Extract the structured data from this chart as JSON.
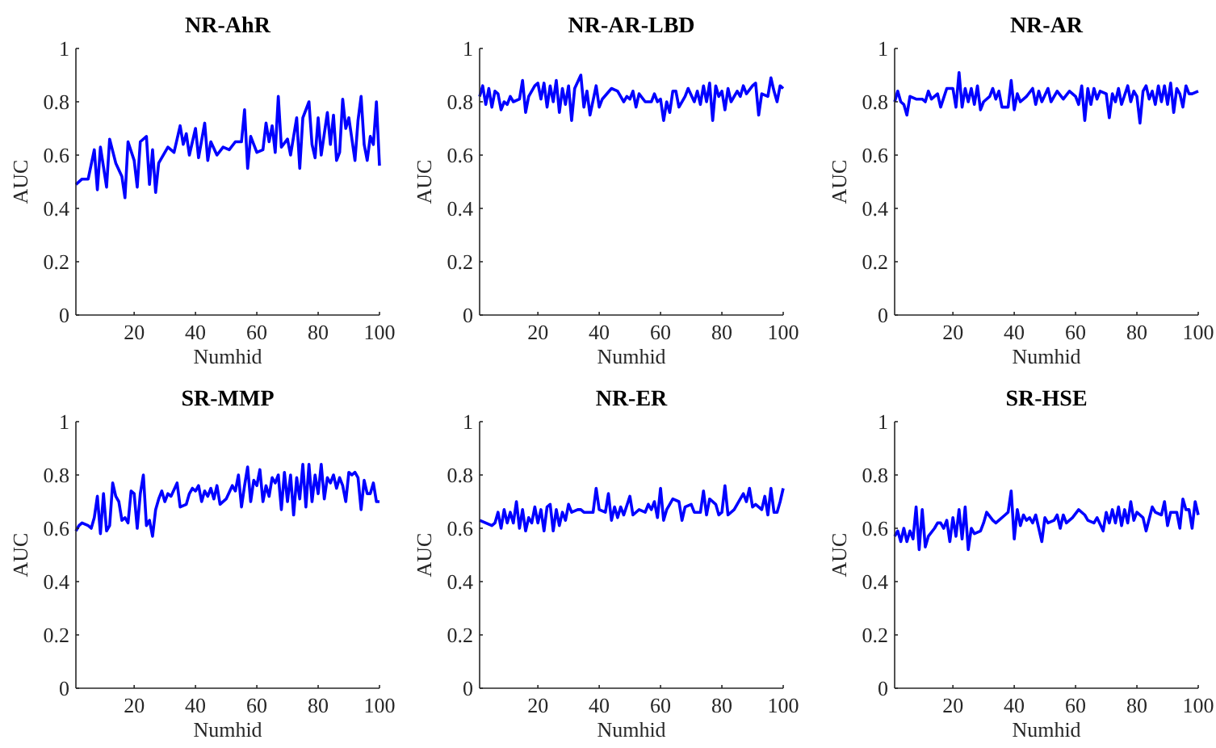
{
  "chart_data": [
    {
      "type": "line",
      "title": "NR-AhR",
      "xlabel": "Numhid",
      "ylabel": "AUC",
      "xlim": [
        1,
        100
      ],
      "xticks": [
        20,
        40,
        60,
        80,
        100
      ],
      "ylim": [
        0,
        1
      ],
      "yticks": [
        0,
        0.2,
        0.4,
        0.6,
        0.8,
        1
      ],
      "series": [
        {
          "color": "#0000ff",
          "x": [
            1,
            3,
            5,
            7,
            8,
            9,
            11,
            12,
            14,
            16,
            17,
            18,
            20,
            21,
            22,
            24,
            25,
            26,
            27,
            28,
            31,
            33,
            35,
            36,
            37,
            38,
            40,
            41,
            43,
            44,
            45,
            47,
            49,
            51,
            53,
            55,
            56,
            57,
            58,
            60,
            62,
            63,
            64,
            65,
            66,
            67,
            68,
            70,
            71,
            73,
            74,
            75,
            77,
            78,
            79,
            80,
            81,
            83,
            84,
            85,
            86,
            87,
            88,
            89,
            90,
            92,
            93,
            94,
            95,
            96,
            97,
            98,
            99,
            100
          ],
          "values": [
            0.49,
            0.51,
            0.51,
            0.62,
            0.47,
            0.63,
            0.48,
            0.66,
            0.57,
            0.52,
            0.44,
            0.65,
            0.58,
            0.48,
            0.65,
            0.67,
            0.49,
            0.62,
            0.46,
            0.57,
            0.63,
            0.61,
            0.71,
            0.64,
            0.68,
            0.6,
            0.7,
            0.59,
            0.72,
            0.58,
            0.65,
            0.6,
            0.63,
            0.62,
            0.65,
            0.65,
            0.77,
            0.55,
            0.67,
            0.61,
            0.62,
            0.72,
            0.65,
            0.71,
            0.61,
            0.82,
            0.63,
            0.66,
            0.6,
            0.74,
            0.55,
            0.74,
            0.8,
            0.64,
            0.59,
            0.74,
            0.6,
            0.76,
            0.64,
            0.75,
            0.58,
            0.61,
            0.81,
            0.7,
            0.74,
            0.58,
            0.73,
            0.82,
            0.64,
            0.58,
            0.67,
            0.64,
            0.8,
            0.56
          ]
        }
      ]
    },
    {
      "type": "line",
      "title": "NR-AR-LBD",
      "xlabel": "Numhid",
      "ylabel": "AUC",
      "xlim": [
        1,
        100
      ],
      "xticks": [
        20,
        40,
        60,
        80,
        100
      ],
      "ylim": [
        0,
        1
      ],
      "yticks": [
        0,
        0.2,
        0.4,
        0.6,
        0.8,
        1
      ],
      "series": [
        {
          "color": "#0000ff",
          "x": [
            1,
            2,
            3,
            4,
            5,
            6,
            7,
            8,
            9,
            10,
            11,
            12,
            14,
            15,
            16,
            17,
            19,
            20,
            21,
            22,
            23,
            24,
            25,
            26,
            27,
            28,
            29,
            30,
            31,
            32,
            34,
            35,
            36,
            37,
            39,
            40,
            41,
            44,
            46,
            48,
            49,
            50,
            51,
            52,
            53,
            55,
            57,
            58,
            59,
            60,
            61,
            62,
            63,
            64,
            65,
            66,
            68,
            69,
            71,
            72,
            73,
            74,
            75,
            76,
            77,
            78,
            79,
            80,
            81,
            82,
            83,
            85,
            86,
            87,
            88,
            90,
            91,
            92,
            93,
            95,
            96,
            97,
            98,
            99,
            100
          ],
          "values": [
            0.82,
            0.86,
            0.79,
            0.85,
            0.78,
            0.84,
            0.83,
            0.77,
            0.8,
            0.79,
            0.82,
            0.8,
            0.81,
            0.88,
            0.76,
            0.82,
            0.86,
            0.87,
            0.81,
            0.87,
            0.78,
            0.86,
            0.8,
            0.88,
            0.76,
            0.85,
            0.79,
            0.86,
            0.73,
            0.85,
            0.9,
            0.78,
            0.84,
            0.75,
            0.86,
            0.78,
            0.81,
            0.85,
            0.84,
            0.8,
            0.82,
            0.81,
            0.84,
            0.78,
            0.83,
            0.8,
            0.8,
            0.83,
            0.8,
            0.81,
            0.73,
            0.8,
            0.76,
            0.84,
            0.84,
            0.78,
            0.82,
            0.85,
            0.8,
            0.84,
            0.79,
            0.86,
            0.8,
            0.87,
            0.73,
            0.86,
            0.82,
            0.84,
            0.77,
            0.85,
            0.8,
            0.84,
            0.82,
            0.86,
            0.83,
            0.86,
            0.87,
            0.75,
            0.83,
            0.82,
            0.89,
            0.84,
            0.8,
            0.86,
            0.85
          ]
        }
      ]
    },
    {
      "type": "line",
      "title": "NR-AR",
      "xlabel": "Numhid",
      "ylabel": "AUC",
      "xlim": [
        1,
        100
      ],
      "xticks": [
        20,
        40,
        60,
        80,
        100
      ],
      "ylim": [
        0,
        1
      ],
      "yticks": [
        0,
        0.2,
        0.4,
        0.6,
        0.8,
        1
      ],
      "series": [
        {
          "color": "#0000ff",
          "x": [
            1,
            2,
            3,
            4,
            5,
            6,
            8,
            10,
            11,
            12,
            13,
            15,
            16,
            18,
            20,
            21,
            22,
            23,
            24,
            25,
            26,
            27,
            28,
            29,
            30,
            32,
            33,
            34,
            35,
            36,
            38,
            39,
            40,
            41,
            42,
            44,
            46,
            47,
            48,
            49,
            51,
            52,
            54,
            56,
            58,
            60,
            61,
            62,
            63,
            64,
            65,
            66,
            67,
            68,
            70,
            71,
            72,
            73,
            74,
            75,
            77,
            78,
            79,
            80,
            81,
            82,
            83,
            84,
            85,
            86,
            87,
            88,
            89,
            90,
            91,
            92,
            93,
            94,
            95,
            96,
            97,
            98,
            100
          ],
          "values": [
            0.8,
            0.84,
            0.8,
            0.79,
            0.75,
            0.82,
            0.81,
            0.81,
            0.8,
            0.84,
            0.81,
            0.83,
            0.78,
            0.85,
            0.85,
            0.78,
            0.91,
            0.78,
            0.85,
            0.8,
            0.85,
            0.79,
            0.86,
            0.77,
            0.8,
            0.82,
            0.85,
            0.81,
            0.84,
            0.78,
            0.78,
            0.88,
            0.77,
            0.83,
            0.8,
            0.82,
            0.85,
            0.79,
            0.84,
            0.8,
            0.85,
            0.8,
            0.84,
            0.81,
            0.84,
            0.82,
            0.79,
            0.86,
            0.73,
            0.85,
            0.79,
            0.85,
            0.81,
            0.84,
            0.83,
            0.74,
            0.83,
            0.8,
            0.85,
            0.79,
            0.86,
            0.8,
            0.84,
            0.82,
            0.72,
            0.84,
            0.86,
            0.81,
            0.84,
            0.79,
            0.86,
            0.8,
            0.86,
            0.79,
            0.87,
            0.76,
            0.85,
            0.83,
            0.78,
            0.86,
            0.83,
            0.83,
            0.84
          ]
        }
      ]
    },
    {
      "type": "line",
      "title": "SR-MMP",
      "xlabel": "Numhid",
      "ylabel": "AUC",
      "xlim": [
        1,
        100
      ],
      "xticks": [
        20,
        40,
        60,
        80,
        100
      ],
      "ylim": [
        0,
        1
      ],
      "yticks": [
        0,
        0.2,
        0.4,
        0.6,
        0.8,
        1
      ],
      "series": [
        {
          "color": "#0000ff",
          "x": [
            1,
            2,
            3,
            5,
            6,
            7,
            8,
            9,
            10,
            11,
            12,
            13,
            14,
            15,
            16,
            17,
            18,
            19,
            20,
            21,
            22,
            23,
            24,
            25,
            26,
            27,
            28,
            29,
            30,
            31,
            32,
            34,
            35,
            37,
            38,
            39,
            40,
            41,
            42,
            43,
            44,
            45,
            46,
            47,
            48,
            50,
            52,
            53,
            54,
            55,
            56,
            57,
            58,
            59,
            60,
            61,
            62,
            63,
            64,
            65,
            66,
            67,
            68,
            69,
            70,
            71,
            72,
            73,
            74,
            75,
            76,
            77,
            78,
            79,
            80,
            81,
            82,
            83,
            84,
            85,
            86,
            87,
            88,
            89,
            90,
            91,
            92,
            93,
            94,
            95,
            96,
            97,
            98,
            99,
            100
          ],
          "values": [
            0.59,
            0.61,
            0.62,
            0.61,
            0.6,
            0.64,
            0.72,
            0.58,
            0.73,
            0.59,
            0.61,
            0.77,
            0.72,
            0.7,
            0.63,
            0.64,
            0.62,
            0.74,
            0.73,
            0.6,
            0.73,
            0.8,
            0.61,
            0.63,
            0.57,
            0.67,
            0.71,
            0.74,
            0.7,
            0.73,
            0.72,
            0.77,
            0.68,
            0.69,
            0.73,
            0.75,
            0.74,
            0.76,
            0.7,
            0.74,
            0.72,
            0.75,
            0.71,
            0.76,
            0.69,
            0.71,
            0.76,
            0.74,
            0.8,
            0.68,
            0.76,
            0.83,
            0.7,
            0.78,
            0.76,
            0.82,
            0.7,
            0.76,
            0.72,
            0.79,
            0.77,
            0.8,
            0.67,
            0.81,
            0.7,
            0.8,
            0.65,
            0.79,
            0.71,
            0.84,
            0.68,
            0.84,
            0.7,
            0.8,
            0.73,
            0.84,
            0.71,
            0.79,
            0.77,
            0.8,
            0.75,
            0.79,
            0.76,
            0.7,
            0.81,
            0.8,
            0.81,
            0.79,
            0.67,
            0.78,
            0.73,
            0.73,
            0.77,
            0.7,
            0.7
          ]
        }
      ]
    },
    {
      "type": "line",
      "title": "NR-ER",
      "xlabel": "Numhid",
      "ylabel": "AUC",
      "xlim": [
        1,
        100
      ],
      "xticks": [
        20,
        40,
        60,
        80,
        100
      ],
      "ylim": [
        0,
        1
      ],
      "yticks": [
        0,
        0.2,
        0.4,
        0.6,
        0.8,
        1
      ],
      "series": [
        {
          "color": "#0000ff",
          "x": [
            1,
            3,
            5,
            6,
            7,
            8,
            9,
            10,
            11,
            12,
            13,
            14,
            15,
            16,
            17,
            18,
            19,
            20,
            21,
            22,
            23,
            24,
            25,
            26,
            27,
            28,
            29,
            30,
            31,
            33,
            34,
            35,
            37,
            38,
            39,
            40,
            42,
            43,
            44,
            45,
            46,
            47,
            48,
            50,
            51,
            53,
            55,
            56,
            57,
            58,
            59,
            60,
            61,
            62,
            63,
            64,
            66,
            67,
            68,
            70,
            71,
            73,
            74,
            75,
            76,
            78,
            79,
            80,
            81,
            82,
            84,
            86,
            87,
            88,
            89,
            90,
            91,
            92,
            93,
            94,
            95,
            96,
            97,
            98,
            99,
            100
          ],
          "values": [
            0.63,
            0.62,
            0.61,
            0.62,
            0.66,
            0.6,
            0.67,
            0.62,
            0.66,
            0.62,
            0.7,
            0.6,
            0.67,
            0.59,
            0.64,
            0.62,
            0.68,
            0.62,
            0.67,
            0.59,
            0.68,
            0.69,
            0.59,
            0.67,
            0.61,
            0.66,
            0.63,
            0.69,
            0.66,
            0.67,
            0.67,
            0.66,
            0.66,
            0.66,
            0.75,
            0.67,
            0.66,
            0.73,
            0.63,
            0.68,
            0.64,
            0.68,
            0.65,
            0.72,
            0.65,
            0.67,
            0.66,
            0.69,
            0.67,
            0.7,
            0.64,
            0.75,
            0.63,
            0.67,
            0.69,
            0.71,
            0.7,
            0.63,
            0.68,
            0.69,
            0.66,
            0.66,
            0.74,
            0.65,
            0.71,
            0.69,
            0.65,
            0.66,
            0.76,
            0.65,
            0.67,
            0.71,
            0.73,
            0.7,
            0.75,
            0.68,
            0.69,
            0.68,
            0.67,
            0.72,
            0.65,
            0.75,
            0.66,
            0.66,
            0.7,
            0.75
          ]
        }
      ]
    },
    {
      "type": "line",
      "title": "SR-HSE",
      "xlabel": "Numhid",
      "ylabel": "AUC",
      "xlim": [
        1,
        100
      ],
      "xticks": [
        20,
        40,
        60,
        80,
        100
      ],
      "ylim": [
        0,
        1
      ],
      "yticks": [
        0,
        0.2,
        0.4,
        0.6,
        0.8,
        1
      ],
      "series": [
        {
          "color": "#0000ff",
          "x": [
            1,
            2,
            3,
            4,
            5,
            6,
            7,
            8,
            9,
            10,
            11,
            12,
            14,
            15,
            16,
            17,
            18,
            19,
            20,
            21,
            22,
            23,
            24,
            25,
            26,
            27,
            29,
            30,
            31,
            33,
            34,
            35,
            37,
            38,
            39,
            40,
            41,
            42,
            43,
            44,
            45,
            46,
            47,
            49,
            50,
            51,
            53,
            54,
            55,
            56,
            57,
            59,
            61,
            63,
            64,
            66,
            67,
            69,
            70,
            71,
            72,
            73,
            74,
            75,
            76,
            77,
            78,
            79,
            80,
            82,
            83,
            85,
            86,
            88,
            89,
            90,
            91,
            93,
            94,
            95,
            96,
            97,
            98,
            99,
            100
          ],
          "values": [
            0.57,
            0.59,
            0.55,
            0.6,
            0.55,
            0.59,
            0.56,
            0.68,
            0.52,
            0.67,
            0.53,
            0.57,
            0.6,
            0.62,
            0.62,
            0.6,
            0.63,
            0.55,
            0.64,
            0.57,
            0.67,
            0.56,
            0.68,
            0.52,
            0.6,
            0.58,
            0.59,
            0.62,
            0.66,
            0.63,
            0.62,
            0.63,
            0.65,
            0.66,
            0.74,
            0.56,
            0.67,
            0.61,
            0.65,
            0.63,
            0.64,
            0.62,
            0.65,
            0.55,
            0.64,
            0.62,
            0.63,
            0.65,
            0.6,
            0.65,
            0.62,
            0.64,
            0.67,
            0.65,
            0.63,
            0.62,
            0.64,
            0.59,
            0.66,
            0.62,
            0.67,
            0.62,
            0.68,
            0.61,
            0.67,
            0.62,
            0.7,
            0.63,
            0.66,
            0.64,
            0.59,
            0.68,
            0.66,
            0.65,
            0.7,
            0.61,
            0.66,
            0.66,
            0.6,
            0.71,
            0.67,
            0.67,
            0.6,
            0.7,
            0.65
          ]
        }
      ]
    }
  ]
}
